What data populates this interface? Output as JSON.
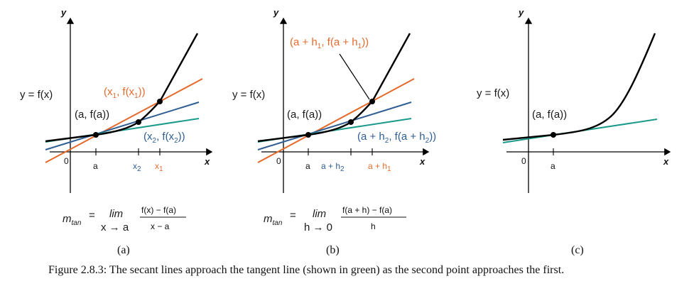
{
  "colors": {
    "tangent": "#1a9a8a",
    "secant1": "#e46a2c",
    "secant2": "#2f5e93",
    "curve": "#000000"
  },
  "axis": {
    "x_label": "x",
    "y_label": "y",
    "origin": "0"
  },
  "panel_a": {
    "func_label": "y = f(x)",
    "point_a": "(a, f(a))",
    "point_x1": [
      "(x",
      "1",
      ", f(x",
      "1",
      "))"
    ],
    "point_x2": [
      "(x",
      "2",
      ", f(x",
      "2",
      "))"
    ],
    "tick_a": "a",
    "tick_x2": [
      "x",
      "2"
    ],
    "tick_x1": [
      "x",
      "1"
    ],
    "formula": {
      "m": "m",
      "m_sub": "tan",
      "eq": "=",
      "lim": "lim",
      "lim_under": "x → a",
      "numerator": "f(x) − f(a)",
      "denominator": "x − a"
    },
    "caption": "(a)"
  },
  "panel_b": {
    "func_label": "y = f(x)",
    "point_a": "(a, f(a))",
    "point_h1": [
      "(a + h",
      "1",
      ", f(a + h",
      "1",
      "))"
    ],
    "point_h2": [
      "(a + h",
      "2",
      ", f(a + h",
      "2",
      "))"
    ],
    "tick_a": "a",
    "tick_h2": [
      "a + h",
      "2"
    ],
    "tick_h1": [
      "a + h",
      "1"
    ],
    "formula": {
      "m": "m",
      "m_sub": "tan",
      "eq": "=",
      "lim": "lim",
      "lim_under": "h → 0",
      "numerator": "f(a + h) − f(a)",
      "denominator": "h"
    },
    "caption": "(b)"
  },
  "panel_c": {
    "func_label": "y = f(x)",
    "point_a": "(a, f(a))",
    "tick_a": "a",
    "caption": "(c)"
  },
  "figure_caption": "Figure 2.8.3: The secant lines approach the tangent line (shown in green) as the second point approaches the first."
}
